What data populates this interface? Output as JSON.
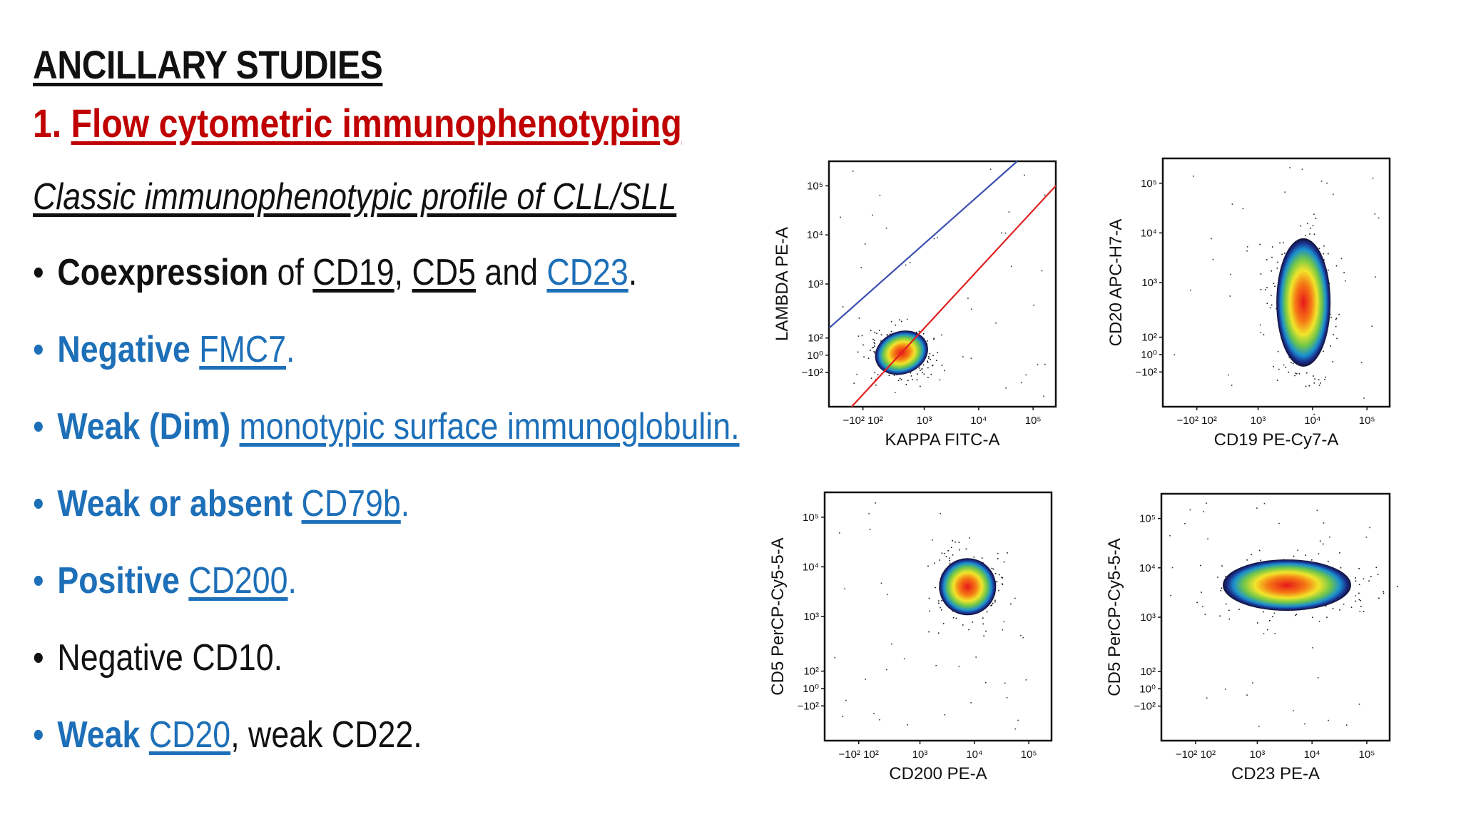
{
  "heading": "ANCILLARY STUDIES",
  "section": {
    "number": "1.",
    "title": "Flow cytometric immunophenotyping"
  },
  "subtitle": "Classic immunophenotypic profile of CLL/SLL",
  "bullets": [
    {
      "bold": "Coexpression",
      "t1": " of ",
      "l1": "CD19",
      "t2": ", ",
      "l2": "CD5",
      "t3": " and ",
      "l3": "CD23",
      "t4": "."
    },
    {
      "bold": "Negative",
      "t1": " ",
      "l1": "FMC7",
      "t2": "."
    },
    {
      "bold": "Weak (Dim)",
      "t1": " ",
      "l1": "monotypic surface immunoglobulin."
    },
    {
      "bold": "Weak or absent",
      "t1": " ",
      "l1": "CD79b",
      "t2": "."
    },
    {
      "bold": "Positive",
      "t1": " ",
      "l1": "CD200",
      "t2": "."
    },
    {
      "text": "Negative CD10."
    },
    {
      "bold": "Weak",
      "t1": " ",
      "l1": "CD20",
      "t2": ", weak CD22."
    }
  ],
  "plots": [
    {
      "ylabel": "LAMBDA PE-A",
      "xlabel": "KAPPA FITC-A"
    },
    {
      "ylabel": "CD20 APC-H7-A",
      "xlabel": "CD19 PE-Cy7-A"
    },
    {
      "ylabel": "CD5 PerCP-Cy5-5-A",
      "xlabel": "CD200 PE-A"
    },
    {
      "ylabel": "CD5 PerCP-Cy5-5-A",
      "xlabel": "CD23 PE-A"
    }
  ],
  "ticks": {
    "y": [
      "10⁵",
      "10⁴",
      "10³",
      "10²",
      "10⁰",
      "−10²"
    ],
    "x": [
      "−10² 10²",
      "10³",
      "10⁴",
      "10⁵"
    ]
  },
  "colors": {
    "heading": "#111111",
    "red_title": "#c00000",
    "blue": "#1d6fb8"
  }
}
